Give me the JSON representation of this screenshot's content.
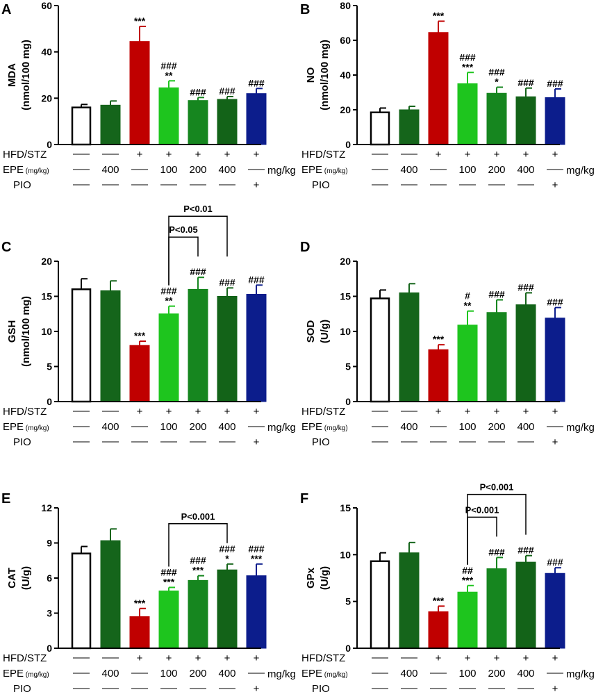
{
  "figure": {
    "row_labels": {
      "hfd": "HFD/STZ",
      "epe_main": "EPE",
      "epe_unit": " (mg/kg)",
      "pio": "PIO",
      "unit_suffix": "mg/kg",
      "dash": "—"
    },
    "groups": [
      {
        "hfd": "—",
        "epe": "—",
        "pio": "—",
        "color": "#ffffff"
      },
      {
        "hfd": "—",
        "epe": "400",
        "pio": "—",
        "color": "#15651b"
      },
      {
        "hfd": "+",
        "epe": "—",
        "pio": "—",
        "color": "#c00000"
      },
      {
        "hfd": "+",
        "epe": "100",
        "pio": "—",
        "color": "#1ec51e"
      },
      {
        "hfd": "+",
        "epe": "200",
        "pio": "—",
        "color": "#16861f"
      },
      {
        "hfd": "+",
        "epe": "400",
        "pio": "—",
        "color": "#136318"
      },
      {
        "hfd": "+",
        "epe": "—",
        "pio": "+",
        "color": "#0c1d8c"
      }
    ]
  },
  "chart_data": [
    {
      "panel": "A",
      "type": "bar",
      "ylabel": "MDA",
      "ylabel2": "(nmol/100 mg)",
      "ylim": [
        0,
        60
      ],
      "yticks": [
        "0",
        "20",
        "40",
        "60"
      ],
      "values": [
        16,
        17,
        44.5,
        24.5,
        19,
        19.5,
        22
      ],
      "errors": [
        1.3,
        1.8,
        6.5,
        3,
        1.3,
        1.2,
        2.2
      ],
      "sig_top": [
        "",
        "",
        "",
        "###",
        "###",
        "###",
        "###"
      ],
      "sig_bottom": [
        "",
        "",
        "***",
        "**",
        "",
        "",
        ""
      ],
      "brackets": []
    },
    {
      "panel": "B",
      "type": "bar",
      "ylabel": "NO",
      "ylabel2": "(nmol/100 mg)",
      "ylim": [
        0,
        80
      ],
      "yticks": [
        "0",
        "20",
        "40",
        "60",
        "80"
      ],
      "values": [
        18.5,
        20,
        64.5,
        35,
        29.5,
        27.5,
        27
      ],
      "errors": [
        2.5,
        2,
        6.5,
        6.5,
        3.5,
        5,
        5
      ],
      "sig_top": [
        "",
        "",
        "",
        "###",
        "###",
        "###",
        "###"
      ],
      "sig_bottom": [
        "",
        "",
        "***",
        "***",
        "*",
        "",
        ""
      ],
      "brackets": []
    },
    {
      "panel": "C",
      "type": "bar",
      "ylabel": "GSH",
      "ylabel2": "(nmol/100 mg)",
      "ylim": [
        0,
        20
      ],
      "yticks": [
        "0",
        "5",
        "10",
        "15",
        "20"
      ],
      "values": [
        16,
        15.8,
        8,
        12.5,
        16,
        15,
        15.3
      ],
      "errors": [
        1.5,
        1.4,
        0.6,
        1.1,
        1.7,
        1.2,
        1.3
      ],
      "sig_top": [
        "",
        "",
        "",
        "###",
        "###",
        "###",
        "###"
      ],
      "sig_bottom": [
        "",
        "",
        "***",
        "**",
        "",
        "",
        ""
      ],
      "brackets": [
        {
          "from": 3,
          "to": 4,
          "label": "P<0.05"
        },
        {
          "from": 3,
          "to": 5,
          "label": "P<0.01"
        }
      ]
    },
    {
      "panel": "D",
      "type": "bar",
      "ylabel": "SOD",
      "ylabel2": "(U/g)",
      "ylim": [
        0,
        20
      ],
      "yticks": [
        "0",
        "5",
        "10",
        "15",
        "20"
      ],
      "values": [
        14.7,
        15.5,
        7.4,
        10.9,
        12.7,
        13.8,
        11.9
      ],
      "errors": [
        1.2,
        1.3,
        0.7,
        2,
        1.8,
        1.7,
        1.5
      ],
      "sig_top": [
        "",
        "",
        "",
        "#",
        "###",
        "###",
        "###"
      ],
      "sig_bottom": [
        "",
        "",
        "***",
        "**",
        "",
        "",
        ""
      ],
      "brackets": []
    },
    {
      "panel": "E",
      "type": "bar",
      "ylabel": "CAT",
      "ylabel2": "(U/g)",
      "ylim": [
        0,
        12
      ],
      "yticks": [
        "0",
        "3",
        "6",
        "9",
        "12"
      ],
      "values": [
        8.1,
        9.2,
        2.7,
        4.9,
        5.8,
        6.7,
        6.2
      ],
      "errors": [
        0.6,
        1,
        0.7,
        0.3,
        0.4,
        0.5,
        1
      ],
      "sig_top": [
        "",
        "",
        "",
        "###",
        "###",
        "###",
        "###"
      ],
      "sig_bottom": [
        "",
        "",
        "***",
        "***",
        "***",
        "*",
        "***"
      ],
      "brackets": [
        {
          "from": 3,
          "to": 5,
          "label": "P<0.001"
        }
      ]
    },
    {
      "panel": "F",
      "type": "bar",
      "ylabel": "GPx",
      "ylabel2": "(U/g)",
      "ylim": [
        0,
        15
      ],
      "yticks": [
        "0",
        "5",
        "10",
        "15"
      ],
      "values": [
        9.3,
        10.2,
        3.9,
        6,
        8.5,
        9.2,
        8
      ],
      "errors": [
        0.9,
        1.1,
        0.6,
        0.7,
        1.2,
        0.7,
        0.6
      ],
      "sig_top": [
        "",
        "",
        "",
        "##",
        "###",
        "###",
        "###"
      ],
      "sig_bottom": [
        "",
        "",
        "***",
        "***",
        "",
        "",
        ""
      ],
      "brackets": [
        {
          "from": 3,
          "to": 4,
          "label": "P<0.001"
        },
        {
          "from": 3,
          "to": 5,
          "label": "P<0.001"
        }
      ]
    }
  ]
}
